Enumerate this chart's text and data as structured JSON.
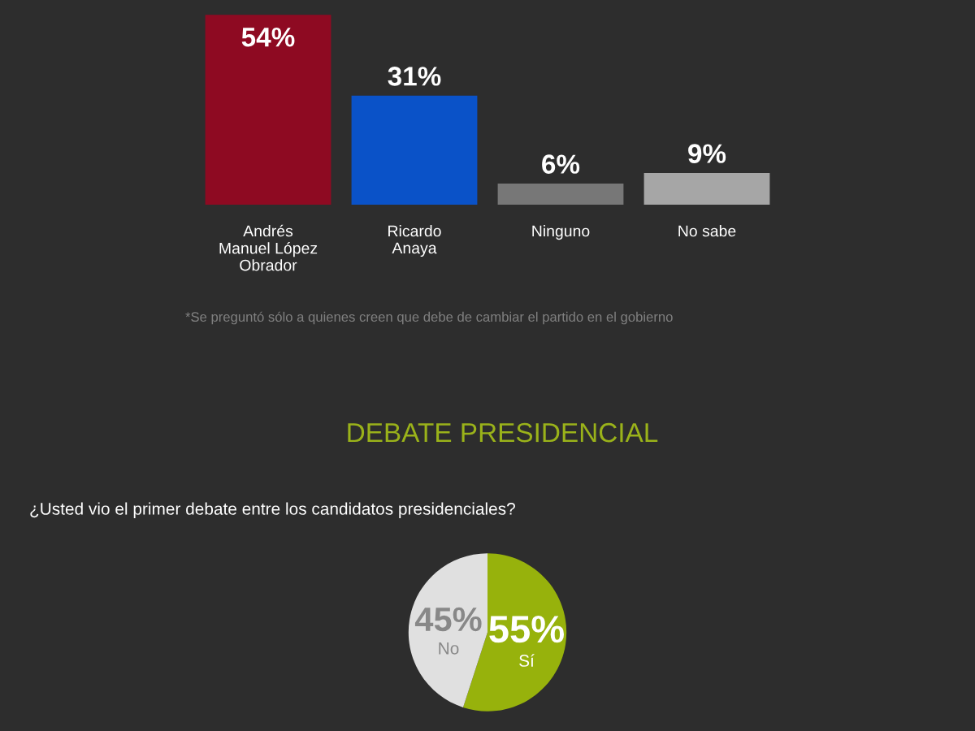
{
  "chart_data": [
    {
      "type": "bar",
      "categories": [
        "Andrés\nManuel López\nObrador",
        "Ricardo\nAnaya",
        "Ninguno",
        "No sabe"
      ],
      "values": [
        54,
        31,
        6,
        9
      ],
      "colors": [
        "#8e0a22",
        "#0a52c8",
        "#777777",
        "#a6a6a6"
      ],
      "value_labels": [
        "54%",
        "31%",
        "6%",
        "9%"
      ],
      "annotations": [
        "*Se preguntó sólo a quienes creen que debe de cambiar el partido en el gobierno"
      ]
    },
    {
      "type": "pie",
      "title": "DEBATE PRESIDENCIAL",
      "subtitle": "¿Usted vio el primer debate entre los candidatos presidenciales?",
      "categories": [
        "Sí",
        "No"
      ],
      "values": [
        55,
        45
      ],
      "colors": [
        "#97b20c",
        "#e0e0e0"
      ],
      "value_labels": [
        "55%",
        "45%"
      ]
    }
  ]
}
